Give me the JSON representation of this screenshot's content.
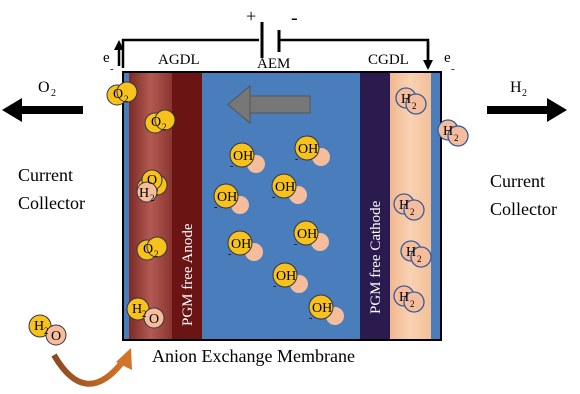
{
  "circuit": {
    "plus": "+",
    "minus": "-",
    "left_electron": "e",
    "left_electron_sign": "-",
    "right_electron": "e",
    "right_electron_sign": "-"
  },
  "labels": {
    "agdl": "AGDL",
    "aem": "AEM",
    "cgdl": "CGDL",
    "anode": "PGM free Anode",
    "cathode": "PGM free Cathode",
    "current_collector_left_line1": "Current",
    "current_collector_left_line2": "Collector",
    "current_collector_right_line1": "Current",
    "current_collector_right_line2": "Collector",
    "membrane": "Anion Exchange Membrane"
  },
  "gases": {
    "o2_main": "O",
    "o2_sub": "2",
    "h2_main": "H",
    "h2_sub": "2"
  },
  "molecules": {
    "o2": {
      "main": "O",
      "sub": "2"
    },
    "h2": {
      "main": "H",
      "sub": "2"
    },
    "oh": {
      "main": "OH",
      "sub": "-"
    },
    "h2o": {
      "main": "H",
      "sub": "2",
      "o": "O"
    }
  },
  "colors": {
    "aem_blue": "#4a7dbb",
    "agdl_red": "#a8473f",
    "anode_dark": "#6b1414",
    "cathode_dark": "#2a1a4e",
    "cgdl_peach": "#f6c9a2",
    "molecule_yellow": "#f7c21c",
    "molecule_peach": "#f5bd9c",
    "arrow_gray": "#777777",
    "curved_arrow": "#c0601c"
  }
}
